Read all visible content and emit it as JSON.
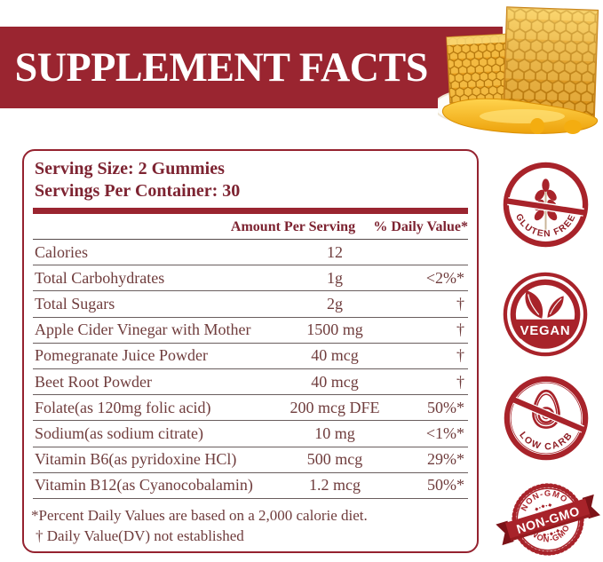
{
  "banner": {
    "title": "SUPPLEMENT FACTS",
    "image": "honeycomb-with-honey"
  },
  "panel": {
    "serving_size": "Serving Size: 2 Gummies",
    "servings_per_container": "Servings Per Container: 30",
    "columns": {
      "amount": "Amount Per Serving",
      "daily_value": "% Daily Value*"
    },
    "rows": [
      {
        "label": "Calories",
        "amount": "12",
        "dv": ""
      },
      {
        "label": "Total Carbohydrates",
        "amount": "1g",
        "dv": "<2%*"
      },
      {
        "label": "Total Sugars",
        "amount": "2g",
        "dv": "†"
      },
      {
        "label": "Apple Cider Vinegar with Mother",
        "amount": "1500 mg",
        "dv": "†"
      },
      {
        "label": "Pomegranate Juice Powder",
        "amount": "40 mcg",
        "dv": "†"
      },
      {
        "label": "Beet Root Powder",
        "amount": "40 mcg",
        "dv": "†"
      },
      {
        "label": "Folate(as 120mg folic acid)",
        "amount": "200 mcg DFE",
        "dv": "50%*"
      },
      {
        "label": "Sodium(as sodium citrate)",
        "amount": "10 mg",
        "dv": "<1%*"
      },
      {
        "label": "Vitamin B6(as pyridoxine HCl)",
        "amount": "500 mcg",
        "dv": "29%*"
      },
      {
        "label": "Vitamin B12(as Cyanocobalamin)",
        "amount": "1.2 mcg",
        "dv": "50%*"
      }
    ],
    "footnotes": [
      "*Percent Daily Values are based on a 2,000 calorie diet.",
      "† Daily Value(DV) not established"
    ]
  },
  "badges": [
    {
      "label": "GLUTEN FREE",
      "icon": "wheat-crossed-icon"
    },
    {
      "label": "VEGAN",
      "icon": "leaf-icon"
    },
    {
      "label": "LOW CARB",
      "icon": "avocado-crossed-icon"
    },
    {
      "label": "NON-GMO",
      "icon": "non-gmo-stamp-icon"
    }
  ],
  "colors": {
    "banner_red": "#9a2530",
    "badge_red": "#a8232a",
    "panel_border": "#95222f",
    "heading_text": "#7d2331",
    "body_text": "#6f3c3c"
  }
}
